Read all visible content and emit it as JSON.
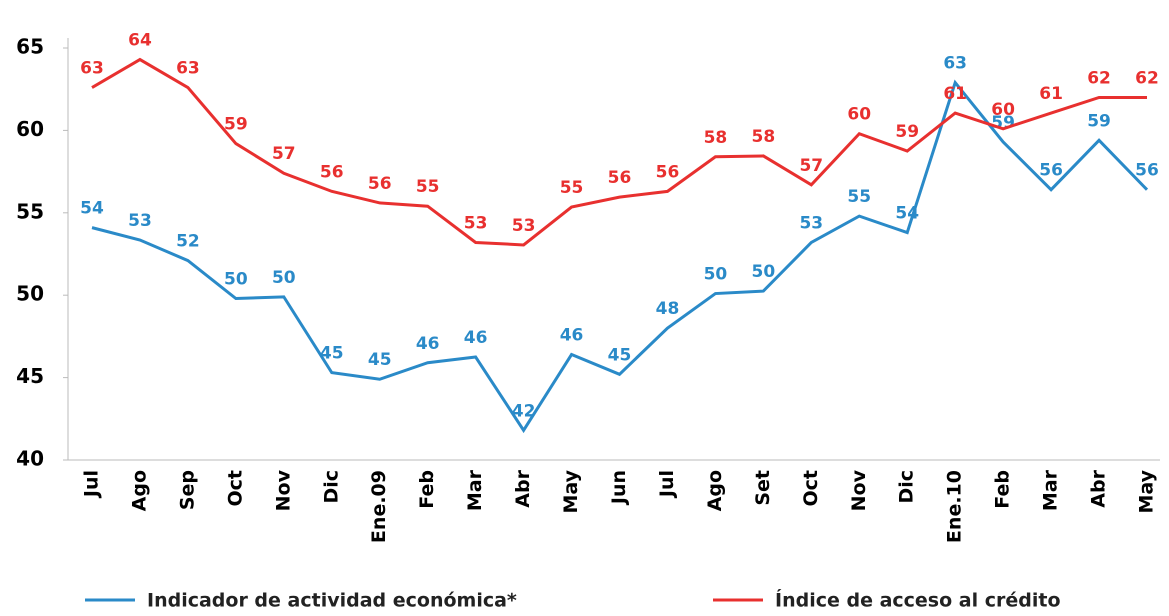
{
  "chart_data": {
    "type": "line",
    "categories": [
      "Jul",
      "Ago",
      "Sep",
      "Oct",
      "Nov",
      "Dic",
      "Ene.09",
      "Feb",
      "Mar",
      "Abr",
      "May",
      "Jun",
      "Jul",
      "Ago",
      "Set",
      "Oct",
      "Nov",
      "Dic",
      "Ene.10",
      "Feb",
      "Mar",
      "Abr",
      "May"
    ],
    "series": [
      {
        "name": "Indicador de actividad económica*",
        "color": "#2a8ac8",
        "values": [
          54.1,
          53.35,
          52.1,
          49.8,
          49.9,
          45.3,
          44.9,
          45.9,
          46.25,
          41.8,
          46.4,
          45.2,
          48.0,
          50.1,
          50.25,
          53.2,
          54.8,
          53.8,
          62.9,
          59.3,
          56.4,
          59.4,
          56.4
        ],
        "value_labels": [
          "54",
          "53",
          "52",
          "50",
          "50",
          "45",
          "45",
          "46",
          "46",
          "42",
          "46",
          "45",
          "48",
          "50",
          "50",
          "53",
          "55",
          "54",
          "63",
          "59",
          "56",
          "59",
          "56"
        ]
      },
      {
        "name": "Índice de acceso al crédito",
        "color": "#e8302f",
        "values": [
          62.6,
          64.3,
          62.6,
          59.2,
          57.4,
          56.3,
          55.6,
          55.4,
          53.2,
          53.05,
          55.35,
          55.95,
          56.3,
          58.4,
          58.45,
          56.7,
          59.8,
          58.75,
          61.05,
          60.1,
          61.05,
          62.0,
          62.0
        ],
        "value_labels": [
          "63",
          "64",
          "63",
          "59",
          "57",
          "56",
          "56",
          "55",
          "53",
          "53",
          "55",
          "56",
          "56",
          "58",
          "58",
          "57",
          "60",
          "59",
          "61",
          "60",
          "61",
          "62",
          "62"
        ]
      }
    ],
    "ylim": [
      40,
      65
    ],
    "yticks": [
      40,
      45,
      50,
      55,
      60,
      65
    ],
    "legend": "bottom"
  }
}
